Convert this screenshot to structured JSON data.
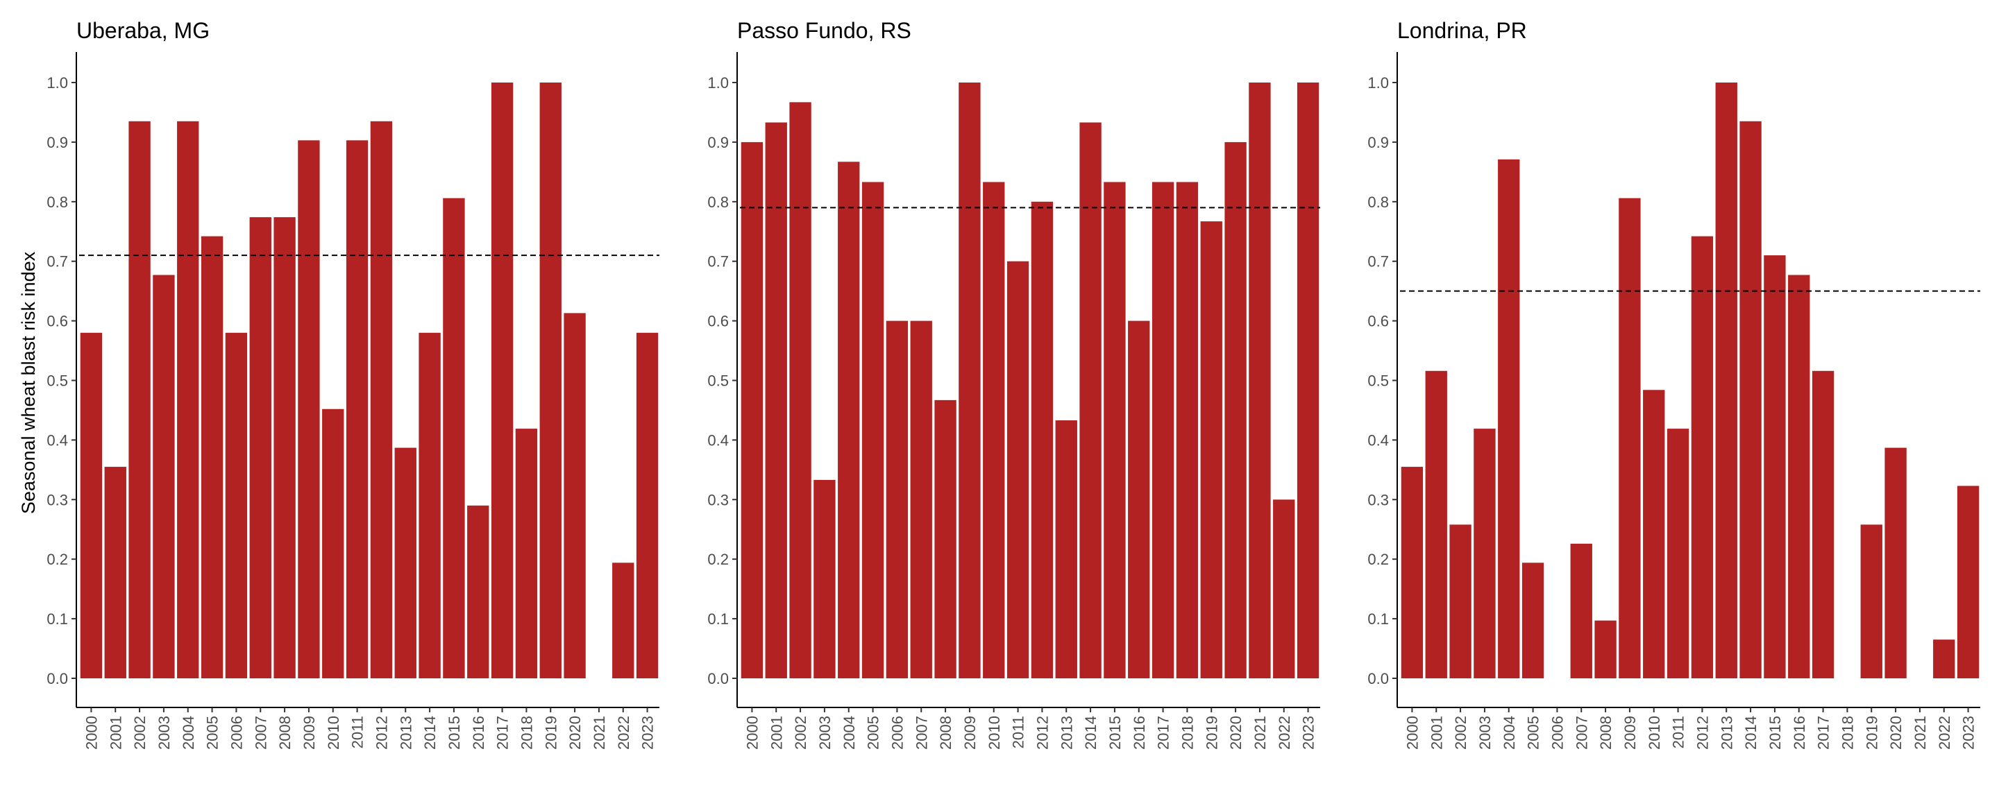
{
  "figure": {
    "ylabel": "Seasonal wheat blast risk index"
  },
  "chart_data": [
    {
      "type": "bar",
      "title": "Uberaba, MG",
      "xlabel": "",
      "ylabel": "Seasonal wheat blast risk index",
      "ylim": [
        0,
        1
      ],
      "yticks": [
        "0.0",
        "0.1",
        "0.2",
        "0.3",
        "0.4",
        "0.5",
        "0.6",
        "0.7",
        "0.8",
        "0.9",
        "1.0"
      ],
      "categories": [
        "2000",
        "2001",
        "2002",
        "2003",
        "2004",
        "2005",
        "2006",
        "2007",
        "2008",
        "2009",
        "2010",
        "2011",
        "2012",
        "2013",
        "2014",
        "2015",
        "2016",
        "2017",
        "2018",
        "2019",
        "2020",
        "2021",
        "2022",
        "2023"
      ],
      "values": [
        0.58,
        0.355,
        0.935,
        0.677,
        0.935,
        0.742,
        0.58,
        0.774,
        0.774,
        0.903,
        0.452,
        0.903,
        0.935,
        0.387,
        0.58,
        0.806,
        0.29,
        1.0,
        0.419,
        1.0,
        0.613,
        null,
        0.194,
        0.58
      ],
      "reference_line": 0.71,
      "bar_color": "#b22222",
      "reference_line_style": "dashed",
      "grid": false
    },
    {
      "type": "bar",
      "title": "Passo Fundo, RS",
      "xlabel": "",
      "ylabel": "",
      "ylim": [
        0,
        1
      ],
      "yticks": [
        "0.0",
        "0.1",
        "0.2",
        "0.3",
        "0.4",
        "0.5",
        "0.6",
        "0.7",
        "0.8",
        "0.9",
        "1.0"
      ],
      "categories": [
        "2000",
        "2001",
        "2002",
        "2003",
        "2004",
        "2005",
        "2006",
        "2007",
        "2008",
        "2009",
        "2010",
        "2011",
        "2012",
        "2013",
        "2014",
        "2015",
        "2016",
        "2017",
        "2018",
        "2019",
        "2020",
        "2021",
        "2022",
        "2023"
      ],
      "values": [
        0.9,
        0.933,
        0.967,
        0.333,
        0.867,
        0.833,
        0.6,
        0.6,
        0.467,
        1.0,
        0.833,
        0.7,
        0.8,
        0.433,
        0.933,
        0.833,
        0.6,
        0.833,
        0.833,
        0.767,
        0.9,
        1.0,
        0.3,
        1.0
      ],
      "reference_line": 0.79,
      "bar_color": "#b22222",
      "reference_line_style": "dashed",
      "grid": false
    },
    {
      "type": "bar",
      "title": "Londrina, PR",
      "xlabel": "",
      "ylabel": "",
      "ylim": [
        0,
        1
      ],
      "yticks": [
        "0.0",
        "0.1",
        "0.2",
        "0.3",
        "0.4",
        "0.5",
        "0.6",
        "0.7",
        "0.8",
        "0.9",
        "1.0"
      ],
      "categories": [
        "2000",
        "2001",
        "2002",
        "2003",
        "2004",
        "2005",
        "2006",
        "2007",
        "2008",
        "2009",
        "2010",
        "2011",
        "2012",
        "2013",
        "2014",
        "2015",
        "2016",
        "2017",
        "2018",
        "2019",
        "2020",
        "2021",
        "2022",
        "2023"
      ],
      "values": [
        0.355,
        0.516,
        0.258,
        0.419,
        0.871,
        0.194,
        null,
        0.226,
        0.097,
        0.806,
        0.484,
        0.419,
        0.742,
        1.0,
        0.935,
        0.71,
        0.677,
        0.516,
        null,
        0.258,
        0.387,
        null,
        0.065,
        0.323
      ],
      "reference_line": 0.65,
      "bar_color": "#b22222",
      "reference_line_style": "dashed",
      "grid": false
    }
  ]
}
